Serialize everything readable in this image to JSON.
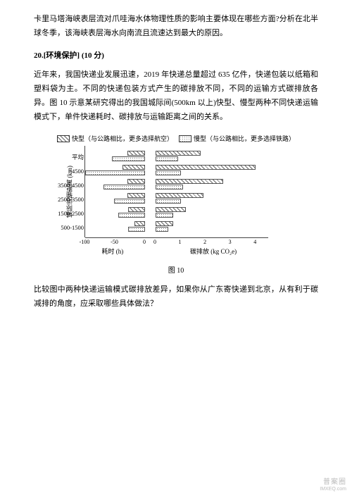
{
  "intro": {
    "p1": "卡里马塔海峡表层流对爪哇海水体物理性质的影响主要体现在哪些方面?分析在北半球冬季，该海峡表层海水向南流且流速达到最大的原因。"
  },
  "section": {
    "title": "20.[环境保护] (10 分)",
    "p1": "近年来，我国快递业发展迅速，2019 年快递总量超过 635 亿件，快递包装以纸箱和塑料袋为主。不同的快递包装方式产生的碳排放不同，不同的运输方式碳排放各异。图 10 示意某研究得出的我国城际间(500km 以上)快型、慢型两种不同快递运输模式下，单件快递耗时、碳排放与运输距离之间的关系。"
  },
  "figure": {
    "legend": {
      "fast": "快型（与公路相比，更多选择航空）",
      "slow": "慢型（与公路相比，更多选择铁路）"
    },
    "ylabel": "城际运输距离 (km)",
    "categories": [
      "平均",
      ">4500",
      "3500-4500",
      "2500-3500",
      "1500-2500",
      "500-1500"
    ],
    "time_ticks": [
      -100,
      -50,
      0
    ],
    "emit_ticks": [
      0,
      1,
      2,
      3,
      4
    ],
    "xlabel_left": "耗时 (h)",
    "xlabel_right": "碳排放 (kg CO₂e)",
    "time_range": [
      -100,
      0
    ],
    "emit_range": [
      0,
      4.5
    ],
    "rows": [
      {
        "time_fast": -30,
        "time_slow": -55,
        "emit_fast": 1.8,
        "emit_slow": 0.9
      },
      {
        "time_fast": -38,
        "time_slow": -100,
        "emit_fast": 4.0,
        "emit_slow": 1.0
      },
      {
        "time_fast": -30,
        "time_slow": -70,
        "emit_fast": 2.7,
        "emit_slow": 1.1
      },
      {
        "time_fast": -30,
        "time_slow": -52,
        "emit_fast": 1.9,
        "emit_slow": 1.0
      },
      {
        "time_fast": -28,
        "time_slow": -45,
        "emit_fast": 1.2,
        "emit_slow": 0.7
      },
      {
        "time_fast": -18,
        "time_slow": -28,
        "emit_fast": 0.7,
        "emit_slow": 0.5
      }
    ],
    "colors": {
      "border": "#555555",
      "axis": "#444444"
    },
    "caption": "图 10"
  },
  "question": "比较图中两种快递运输模式碳排放差异，如果你从广东寄快递到北京，从有利于碳减排的角度，应采取哪些具体做法？",
  "watermark": {
    "main": "普案圈",
    "sub": "IMXEQ.com"
  }
}
